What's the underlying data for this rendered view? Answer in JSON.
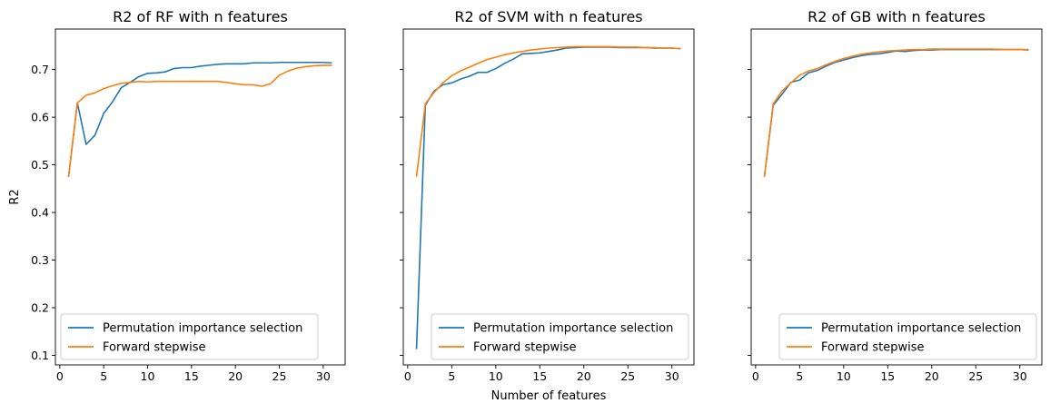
{
  "chart_data": [
    {
      "type": "line",
      "title": "R2 of RF with n features",
      "xlabel": "",
      "ylabel": "R2",
      "xlim": [
        -0.5,
        32.5
      ],
      "ylim": [
        0.08,
        0.785
      ],
      "xticks": [
        0,
        5,
        10,
        15,
        20,
        25,
        30
      ],
      "yticks": [
        0.1,
        0.2,
        0.3,
        0.4,
        0.5,
        0.6,
        0.7
      ],
      "ytick_labels": [
        "0.1",
        "0.2",
        "0.3",
        "0.4",
        "0.5",
        "0.6",
        "0.7"
      ],
      "legend_position": "lower-left",
      "x": [
        1,
        2,
        3,
        4,
        5,
        6,
        7,
        8,
        9,
        10,
        11,
        12,
        13,
        14,
        15,
        16,
        17,
        18,
        19,
        20,
        21,
        22,
        23,
        24,
        25,
        26,
        27,
        28,
        29,
        30,
        31
      ],
      "series": [
        {
          "name": "Permutation importance selection",
          "color": "#1f77b4",
          "values": [
            0.475,
            0.63,
            0.543,
            0.562,
            0.608,
            0.632,
            0.662,
            0.673,
            0.685,
            0.692,
            0.693,
            0.695,
            0.702,
            0.704,
            0.704,
            0.707,
            0.709,
            0.711,
            0.712,
            0.712,
            0.712,
            0.714,
            0.714,
            0.714,
            0.715,
            0.715,
            0.715,
            0.715,
            0.715,
            0.715,
            0.714
          ]
        },
        {
          "name": "Forward stepwise",
          "color": "#ff7f0e",
          "values": [
            0.475,
            0.63,
            0.646,
            0.651,
            0.66,
            0.666,
            0.671,
            0.673,
            0.675,
            0.674,
            0.675,
            0.675,
            0.675,
            0.675,
            0.675,
            0.675,
            0.675,
            0.675,
            0.673,
            0.67,
            0.668,
            0.668,
            0.665,
            0.67,
            0.688,
            0.697,
            0.703,
            0.706,
            0.708,
            0.709,
            0.709
          ]
        }
      ]
    },
    {
      "type": "line",
      "title": "R2 of SVM with n features",
      "xlabel": "Number of features",
      "ylabel": "",
      "xlim": [
        -0.5,
        32.5
      ],
      "ylim": [
        0.08,
        0.785
      ],
      "xticks": [
        0,
        5,
        10,
        15,
        20,
        25,
        30
      ],
      "yticks": [
        0.1,
        0.2,
        0.3,
        0.4,
        0.5,
        0.6,
        0.7
      ],
      "ytick_labels": [],
      "legend_position": "lower-right",
      "x": [
        1,
        2,
        3,
        4,
        5,
        6,
        7,
        8,
        9,
        10,
        11,
        12,
        13,
        14,
        15,
        16,
        17,
        18,
        19,
        20,
        21,
        22,
        23,
        24,
        25,
        26,
        27,
        28,
        29,
        30,
        31
      ],
      "series": [
        {
          "name": "Permutation importance selection",
          "color": "#1f77b4",
          "values": [
            0.113,
            0.625,
            0.655,
            0.668,
            0.672,
            0.68,
            0.686,
            0.694,
            0.694,
            0.702,
            0.713,
            0.722,
            0.733,
            0.734,
            0.735,
            0.738,
            0.741,
            0.745,
            0.746,
            0.747,
            0.747,
            0.747,
            0.747,
            0.746,
            0.746,
            0.746,
            0.746,
            0.745,
            0.745,
            0.745,
            0.744
          ]
        },
        {
          "name": "Forward stepwise",
          "color": "#ff7f0e",
          "values": [
            0.475,
            0.628,
            0.652,
            0.672,
            0.687,
            0.697,
            0.705,
            0.713,
            0.721,
            0.726,
            0.731,
            0.735,
            0.738,
            0.741,
            0.743,
            0.745,
            0.746,
            0.747,
            0.748,
            0.748,
            0.748,
            0.748,
            0.748,
            0.747,
            0.747,
            0.747,
            0.746,
            0.746,
            0.745,
            0.745,
            0.744
          ]
        }
      ]
    },
    {
      "type": "line",
      "title": "R2 of GB with n features",
      "xlabel": "",
      "ylabel": "",
      "xlim": [
        -0.5,
        32.5
      ],
      "ylim": [
        0.08,
        0.785
      ],
      "xticks": [
        0,
        5,
        10,
        15,
        20,
        25,
        30
      ],
      "yticks": [
        0.1,
        0.2,
        0.3,
        0.4,
        0.5,
        0.6,
        0.7
      ],
      "ytick_labels": [],
      "legend_position": "lower-right",
      "x": [
        1,
        2,
        3,
        4,
        5,
        6,
        7,
        8,
        9,
        10,
        11,
        12,
        13,
        14,
        15,
        16,
        17,
        18,
        19,
        20,
        21,
        22,
        23,
        24,
        25,
        26,
        27,
        28,
        29,
        30,
        31
      ],
      "series": [
        {
          "name": "Permutation importance selection",
          "color": "#1f77b4",
          "values": [
            0.475,
            0.625,
            0.648,
            0.673,
            0.678,
            0.693,
            0.698,
            0.707,
            0.715,
            0.72,
            0.725,
            0.729,
            0.732,
            0.733,
            0.736,
            0.739,
            0.738,
            0.74,
            0.741,
            0.741,
            0.742,
            0.742,
            0.742,
            0.742,
            0.742,
            0.742,
            0.742,
            0.742,
            0.742,
            0.742,
            0.741
          ]
        },
        {
          "name": "Forward stepwise",
          "color": "#ff7f0e",
          "values": [
            0.475,
            0.628,
            0.655,
            0.672,
            0.688,
            0.697,
            0.702,
            0.71,
            0.717,
            0.723,
            0.728,
            0.732,
            0.735,
            0.737,
            0.739,
            0.74,
            0.741,
            0.742,
            0.742,
            0.743,
            0.743,
            0.743,
            0.743,
            0.743,
            0.743,
            0.743,
            0.743,
            0.742,
            0.742,
            0.742,
            0.742
          ]
        }
      ]
    }
  ]
}
